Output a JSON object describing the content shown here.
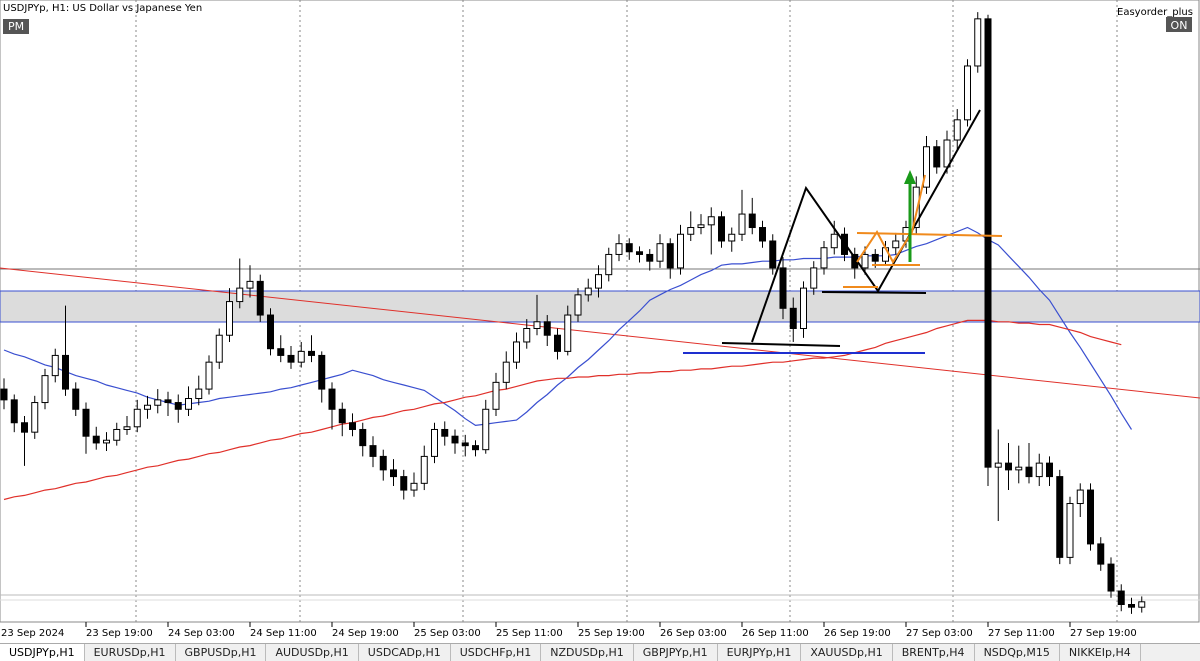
{
  "header": {
    "title": "USDJPYp, H1:  US Dollar vs Japanese Yen",
    "session_badge": "PM",
    "plugin_name": "Easyorder_plus",
    "plugin_state": "ON"
  },
  "chart_data": {
    "type": "candlestick",
    "ylim": [
      141.97,
      146.59
    ],
    "xtick_labels": [
      "23 Sep 2024",
      "23 Sep 19:00",
      "24 Sep 03:00",
      "24 Sep 11:00",
      "24 Sep 19:00",
      "25 Sep 03:00",
      "25 Sep 11:00",
      "25 Sep 19:00",
      "26 Sep 03:00",
      "26 Sep 11:00",
      "26 Sep 19:00",
      "27 Sep 03:00",
      "27 Sep 11:00",
      "27 Sep 19:00"
    ],
    "up_color": "#ffffff",
    "down_color": "#000000",
    "ohlc": [
      [
        143.7,
        143.78,
        143.55,
        143.62
      ],
      [
        143.62,
        143.66,
        143.38,
        143.45
      ],
      [
        143.45,
        143.5,
        143.13,
        143.38
      ],
      [
        143.38,
        143.65,
        143.33,
        143.6
      ],
      [
        143.6,
        143.85,
        143.55,
        143.8
      ],
      [
        143.8,
        144.0,
        143.75,
        143.95
      ],
      [
        143.95,
        144.32,
        143.65,
        143.7
      ],
      [
        143.7,
        143.75,
        143.5,
        143.55
      ],
      [
        143.55,
        143.6,
        143.22,
        143.35
      ],
      [
        143.35,
        143.42,
        143.25,
        143.3
      ],
      [
        143.3,
        143.38,
        143.24,
        143.32
      ],
      [
        143.32,
        143.45,
        143.28,
        143.4
      ],
      [
        143.4,
        143.5,
        143.36,
        143.42
      ],
      [
        143.42,
        143.62,
        143.38,
        143.55
      ],
      [
        143.55,
        143.65,
        143.48,
        143.58
      ],
      [
        143.58,
        143.7,
        143.52,
        143.62
      ],
      [
        143.62,
        143.68,
        143.5,
        143.6
      ],
      [
        143.6,
        143.66,
        143.45,
        143.55
      ],
      [
        143.55,
        143.72,
        143.5,
        143.63
      ],
      [
        143.63,
        143.8,
        143.58,
        143.7
      ],
      [
        143.7,
        143.95,
        143.66,
        143.9
      ],
      [
        143.9,
        144.15,
        143.85,
        144.1
      ],
      [
        144.1,
        144.45,
        144.05,
        144.35
      ],
      [
        144.35,
        144.67,
        144.3,
        144.45
      ],
      [
        144.45,
        144.62,
        144.38,
        144.5
      ],
      [
        144.5,
        144.55,
        144.2,
        144.25
      ],
      [
        144.25,
        144.3,
        143.95,
        144.0
      ],
      [
        144.0,
        144.1,
        143.9,
        143.95
      ],
      [
        143.95,
        144.02,
        143.85,
        143.9
      ],
      [
        143.9,
        144.05,
        143.86,
        143.98
      ],
      [
        143.98,
        144.1,
        143.9,
        143.95
      ],
      [
        143.95,
        143.98,
        143.6,
        143.7
      ],
      [
        143.7,
        143.75,
        143.4,
        143.55
      ],
      [
        143.55,
        143.6,
        143.35,
        143.45
      ],
      [
        143.45,
        143.52,
        143.35,
        143.4
      ],
      [
        143.4,
        143.45,
        143.2,
        143.28
      ],
      [
        143.28,
        143.35,
        143.12,
        143.2
      ],
      [
        143.2,
        143.25,
        143.02,
        143.1
      ],
      [
        143.1,
        143.18,
        142.98,
        143.05
      ],
      [
        143.05,
        143.1,
        142.88,
        142.95
      ],
      [
        142.95,
        143.08,
        142.9,
        143.0
      ],
      [
        143.0,
        143.28,
        142.95,
        143.2
      ],
      [
        143.2,
        143.45,
        143.15,
        143.4
      ],
      [
        143.4,
        143.46,
        143.28,
        143.35
      ],
      [
        143.35,
        143.4,
        143.22,
        143.3
      ],
      [
        143.3,
        143.36,
        143.2,
        143.28
      ],
      [
        143.28,
        143.32,
        143.2,
        143.25
      ],
      [
        143.25,
        143.62,
        143.22,
        143.55
      ],
      [
        143.55,
        143.82,
        143.5,
        143.75
      ],
      [
        143.75,
        143.98,
        143.7,
        143.9
      ],
      [
        143.9,
        144.12,
        143.85,
        144.05
      ],
      [
        144.05,
        144.22,
        144.0,
        144.15
      ],
      [
        144.15,
        144.4,
        144.1,
        144.2
      ],
      [
        144.2,
        144.25,
        144.02,
        144.1
      ],
      [
        144.1,
        144.15,
        143.92,
        143.98
      ],
      [
        143.98,
        144.32,
        143.95,
        144.25
      ],
      [
        144.25,
        144.45,
        144.2,
        144.4
      ],
      [
        144.4,
        144.52,
        144.35,
        144.45
      ],
      [
        144.45,
        144.62,
        144.38,
        144.55
      ],
      [
        144.55,
        144.75,
        144.5,
        144.7
      ],
      [
        144.7,
        144.85,
        144.65,
        144.78
      ],
      [
        144.78,
        144.82,
        144.66,
        144.72
      ],
      [
        144.72,
        144.76,
        144.64,
        144.7
      ],
      [
        144.7,
        144.74,
        144.58,
        144.65
      ],
      [
        144.65,
        144.85,
        144.6,
        144.78
      ],
      [
        144.78,
        144.82,
        144.52,
        144.6
      ],
      [
        144.6,
        144.92,
        144.55,
        144.85
      ],
      [
        144.85,
        145.02,
        144.8,
        144.9
      ],
      [
        144.9,
        145.0,
        144.85,
        144.92
      ],
      [
        144.92,
        145.05,
        144.7,
        144.98
      ],
      [
        144.98,
        145.02,
        144.75,
        144.8
      ],
      [
        144.8,
        144.9,
        144.72,
        144.85
      ],
      [
        144.85,
        145.18,
        144.8,
        145.0
      ],
      [
        145.0,
        145.12,
        144.85,
        144.9
      ],
      [
        144.9,
        144.95,
        144.75,
        144.8
      ],
      [
        144.8,
        144.85,
        144.55,
        144.6
      ],
      [
        144.6,
        144.68,
        144.22,
        144.3
      ],
      [
        144.3,
        144.38,
        144.05,
        144.15
      ],
      [
        144.15,
        144.5,
        144.08,
        144.45
      ],
      [
        144.45,
        144.65,
        144.4,
        144.6
      ],
      [
        144.6,
        144.8,
        144.55,
        144.75
      ],
      [
        144.75,
        144.95,
        144.7,
        144.85
      ],
      [
        144.85,
        144.9,
        144.65,
        144.7
      ],
      [
        144.7,
        144.75,
        144.52,
        144.6
      ],
      [
        144.6,
        144.76,
        144.55,
        144.7
      ],
      [
        144.7,
        144.74,
        144.6,
        144.65
      ],
      [
        144.65,
        144.8,
        144.62,
        144.75
      ],
      [
        144.75,
        144.86,
        144.7,
        144.8
      ],
      [
        144.8,
        144.95,
        144.75,
        144.9
      ],
      [
        144.9,
        145.28,
        144.85,
        145.2
      ],
      [
        145.2,
        145.58,
        145.15,
        145.5
      ],
      [
        145.5,
        145.55,
        145.3,
        145.35
      ],
      [
        145.35,
        145.62,
        145.3,
        145.55
      ],
      [
        145.55,
        145.78,
        145.48,
        145.7
      ],
      [
        145.7,
        146.15,
        145.65,
        146.1
      ],
      [
        146.1,
        146.5,
        146.05,
        146.45
      ],
      [
        146.45,
        146.48,
        142.98,
        143.12
      ],
      [
        143.12,
        143.4,
        142.72,
        143.15
      ],
      [
        143.15,
        143.3,
        142.95,
        143.1
      ],
      [
        143.1,
        143.28,
        143.0,
        143.12
      ],
      [
        143.12,
        143.3,
        143.0,
        143.05
      ],
      [
        143.05,
        143.22,
        142.98,
        143.15
      ],
      [
        143.15,
        143.2,
        142.98,
        143.05
      ],
      [
        143.05,
        143.1,
        142.4,
        142.45
      ],
      [
        142.45,
        142.9,
        142.4,
        142.85
      ],
      [
        142.85,
        143.0,
        142.75,
        142.95
      ],
      [
        142.95,
        143.0,
        142.5,
        142.55
      ],
      [
        142.55,
        142.6,
        142.35,
        142.4
      ],
      [
        142.4,
        142.45,
        142.15,
        142.2
      ],
      [
        142.2,
        142.25,
        142.05,
        142.1
      ],
      [
        142.1,
        142.15,
        142.03,
        142.08
      ],
      [
        142.08,
        142.16,
        142.04,
        142.12
      ]
    ],
    "series": [
      {
        "color": "#3a4fd0",
        "values": [
          143.99,
          143.96,
          143.94,
          143.91,
          143.88,
          143.86,
          143.83,
          143.8,
          143.78,
          143.76,
          143.73,
          143.71,
          143.69,
          143.67,
          143.64,
          143.62,
          143.6,
          143.58,
          143.59,
          143.6,
          143.61,
          143.63,
          143.64,
          143.65,
          143.66,
          143.67,
          143.68,
          143.7,
          143.71,
          143.73,
          143.75,
          143.77,
          143.79,
          143.81,
          143.84,
          143.82,
          143.8,
          143.77,
          143.75,
          143.73,
          143.71,
          143.69,
          143.64,
          143.59,
          143.54,
          143.48,
          143.43,
          143.44,
          143.45,
          143.46,
          143.47,
          143.53,
          143.6,
          143.66,
          143.73,
          143.79,
          143.86,
          143.92,
          143.99,
          144.06,
          144.14,
          144.21,
          144.28,
          144.36,
          144.4,
          144.44,
          144.47,
          144.51,
          144.55,
          144.58,
          144.62,
          144.63,
          144.63,
          144.64,
          144.65,
          144.65,
          144.66,
          144.66,
          144.67,
          144.67,
          144.67,
          144.68,
          144.68,
          144.68,
          144.69,
          144.69,
          144.69,
          144.7,
          144.73,
          144.76,
          144.78,
          144.81,
          144.84,
          144.87,
          144.9,
          144.86,
          144.81,
          144.77,
          144.69,
          144.61,
          144.53,
          144.44,
          144.36,
          144.24,
          144.12,
          144.01,
          143.89,
          143.77,
          143.65,
          143.52,
          143.4,
          null
        ]
      },
      {
        "color": "#e0302a",
        "values": [
          142.88,
          142.9,
          142.91,
          142.93,
          142.95,
          142.96,
          142.98,
          143.0,
          143.01,
          143.03,
          143.05,
          143.06,
          143.08,
          143.1,
          143.12,
          143.13,
          143.15,
          143.17,
          143.18,
          143.2,
          143.22,
          143.23,
          143.25,
          143.27,
          143.28,
          143.3,
          143.32,
          143.33,
          143.35,
          143.37,
          143.38,
          143.4,
          143.42,
          143.44,
          143.45,
          143.47,
          143.49,
          143.5,
          143.52,
          143.54,
          143.55,
          143.57,
          143.59,
          143.6,
          143.62,
          143.64,
          143.65,
          143.67,
          143.69,
          143.7,
          143.72,
          143.74,
          143.76,
          143.77,
          143.78,
          143.78,
          143.79,
          143.79,
          143.8,
          143.8,
          143.81,
          143.81,
          143.82,
          143.82,
          143.83,
          143.83,
          143.84,
          143.84,
          143.85,
          143.85,
          143.86,
          143.87,
          143.87,
          143.88,
          143.89,
          143.9,
          143.9,
          143.91,
          143.92,
          143.93,
          143.93,
          143.94,
          143.95,
          143.97,
          143.99,
          144.01,
          144.04,
          144.06,
          144.08,
          144.1,
          144.12,
          144.15,
          144.17,
          144.19,
          144.21,
          144.21,
          144.21,
          144.2,
          144.2,
          144.19,
          144.19,
          144.18,
          144.18,
          144.16,
          144.14,
          144.12,
          144.09,
          144.07,
          144.05,
          144.03,
          null,
          null
        ]
      }
    ]
  },
  "tabs": [
    "USDJPYp,H1",
    "EURUSDp,H1",
    "GBPUSDp,H1",
    "AUDUSDp,H1",
    "USDCADp,H1",
    "USDCHFp,H1",
    "NZDUSDp,H1",
    "GBPJPYp,H1",
    "EURJPYp,H1",
    "XAUUSDp,H1",
    "BRENTp,H4",
    "NSDQp,M15",
    "NIKKEIp,H4"
  ]
}
